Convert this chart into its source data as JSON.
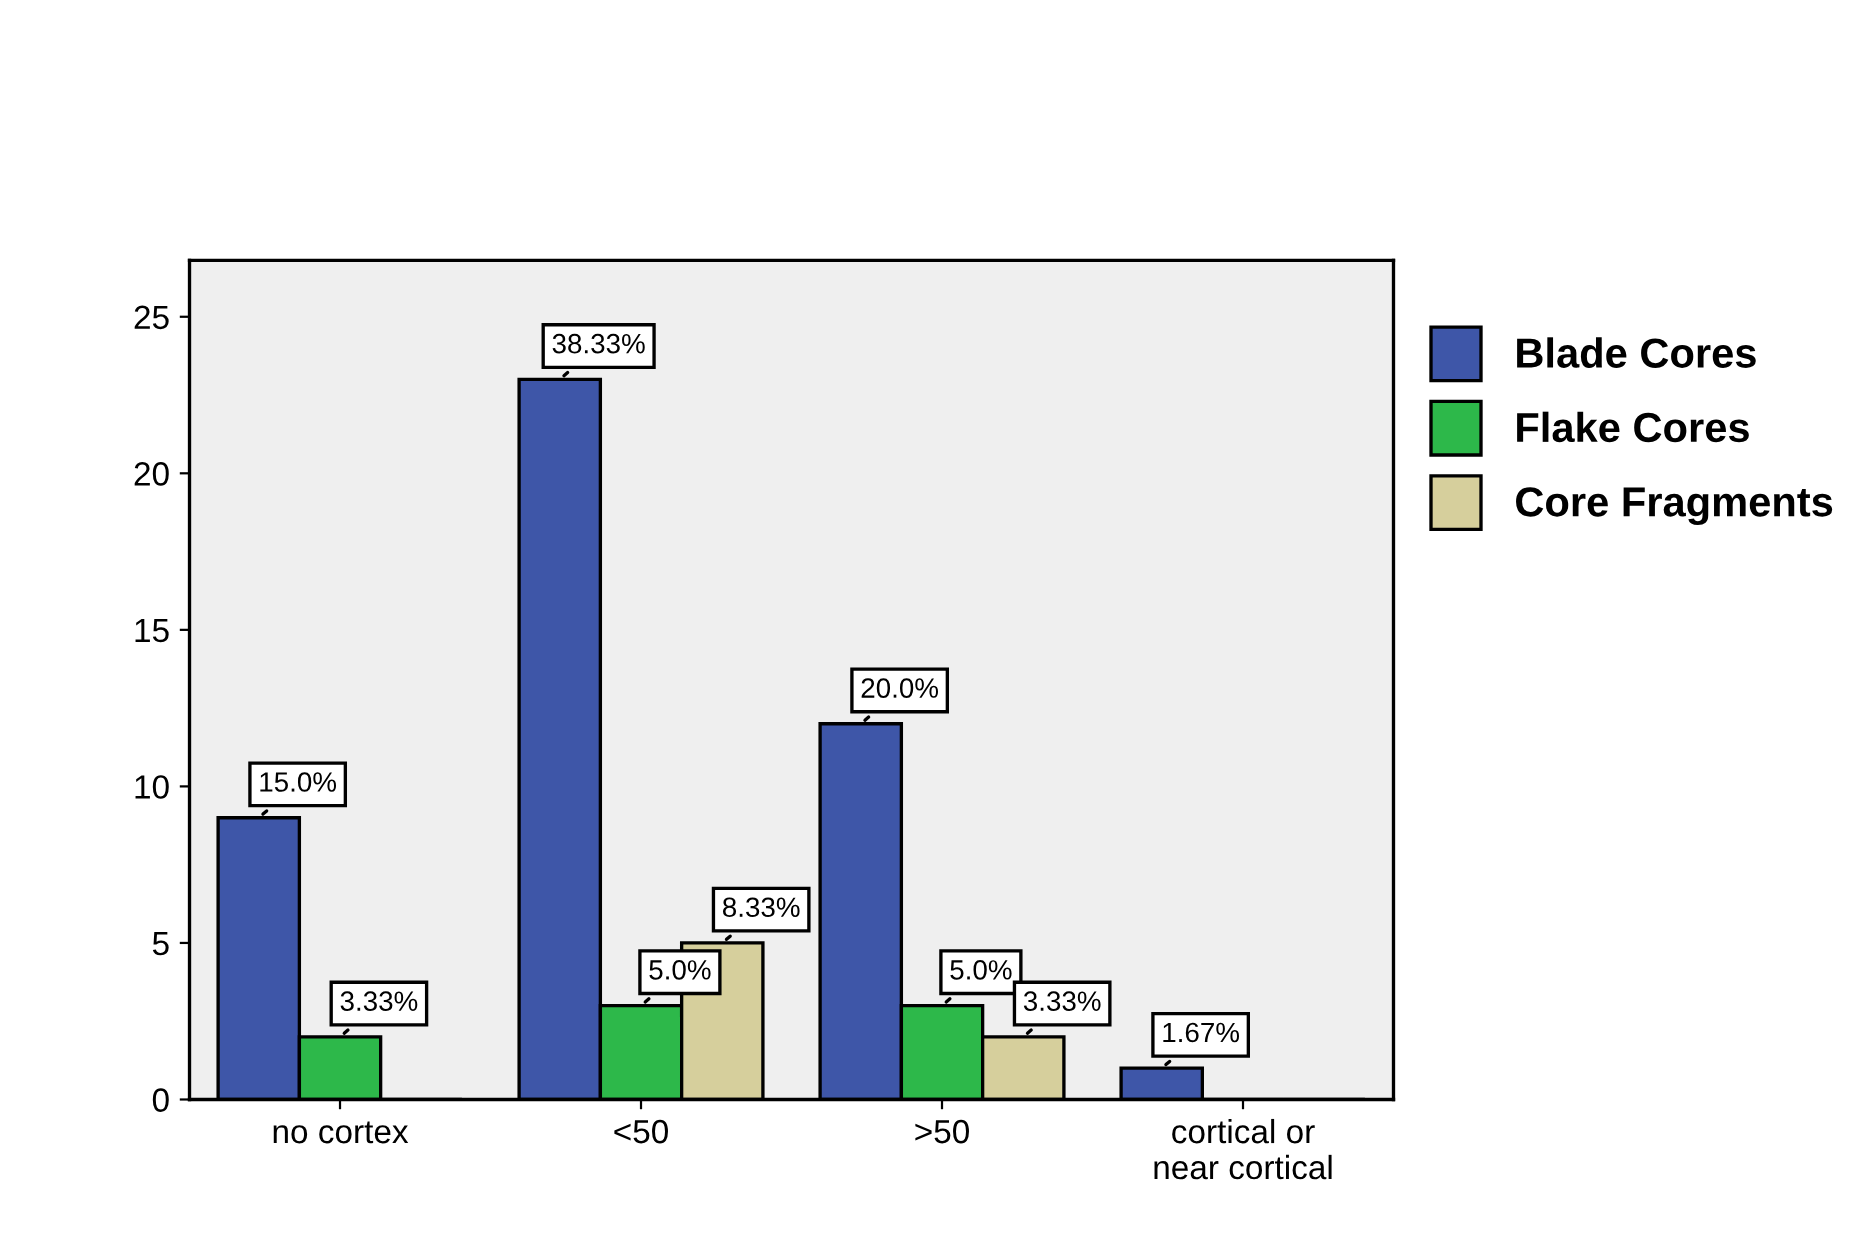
{
  "chart_data": {
    "type": "bar",
    "categories": [
      "no cortex",
      "<50",
      ">50",
      "cortical or\nnear cortical"
    ],
    "series": [
      {
        "name": "Blade Cores",
        "color": "#3e56a8",
        "values": [
          9,
          23,
          12,
          1
        ]
      },
      {
        "name": "Flake Cores",
        "color": "#2db84a",
        "values": [
          2,
          3,
          3,
          0
        ]
      },
      {
        "name": "Core Fragments",
        "color": "#d6cf9c",
        "values": [
          0,
          5,
          2,
          0
        ]
      }
    ],
    "annotations": [
      "15.0%",
      "3.33%",
      "38.33%",
      "5.0%",
      "8.33%",
      "20.0%",
      "5.0%",
      "3.33%",
      "1.67%"
    ],
    "ylim": [
      0,
      26.8
    ],
    "yticks": [
      0,
      5,
      10,
      15,
      20,
      25
    ],
    "grid": false,
    "legend": "right"
  }
}
